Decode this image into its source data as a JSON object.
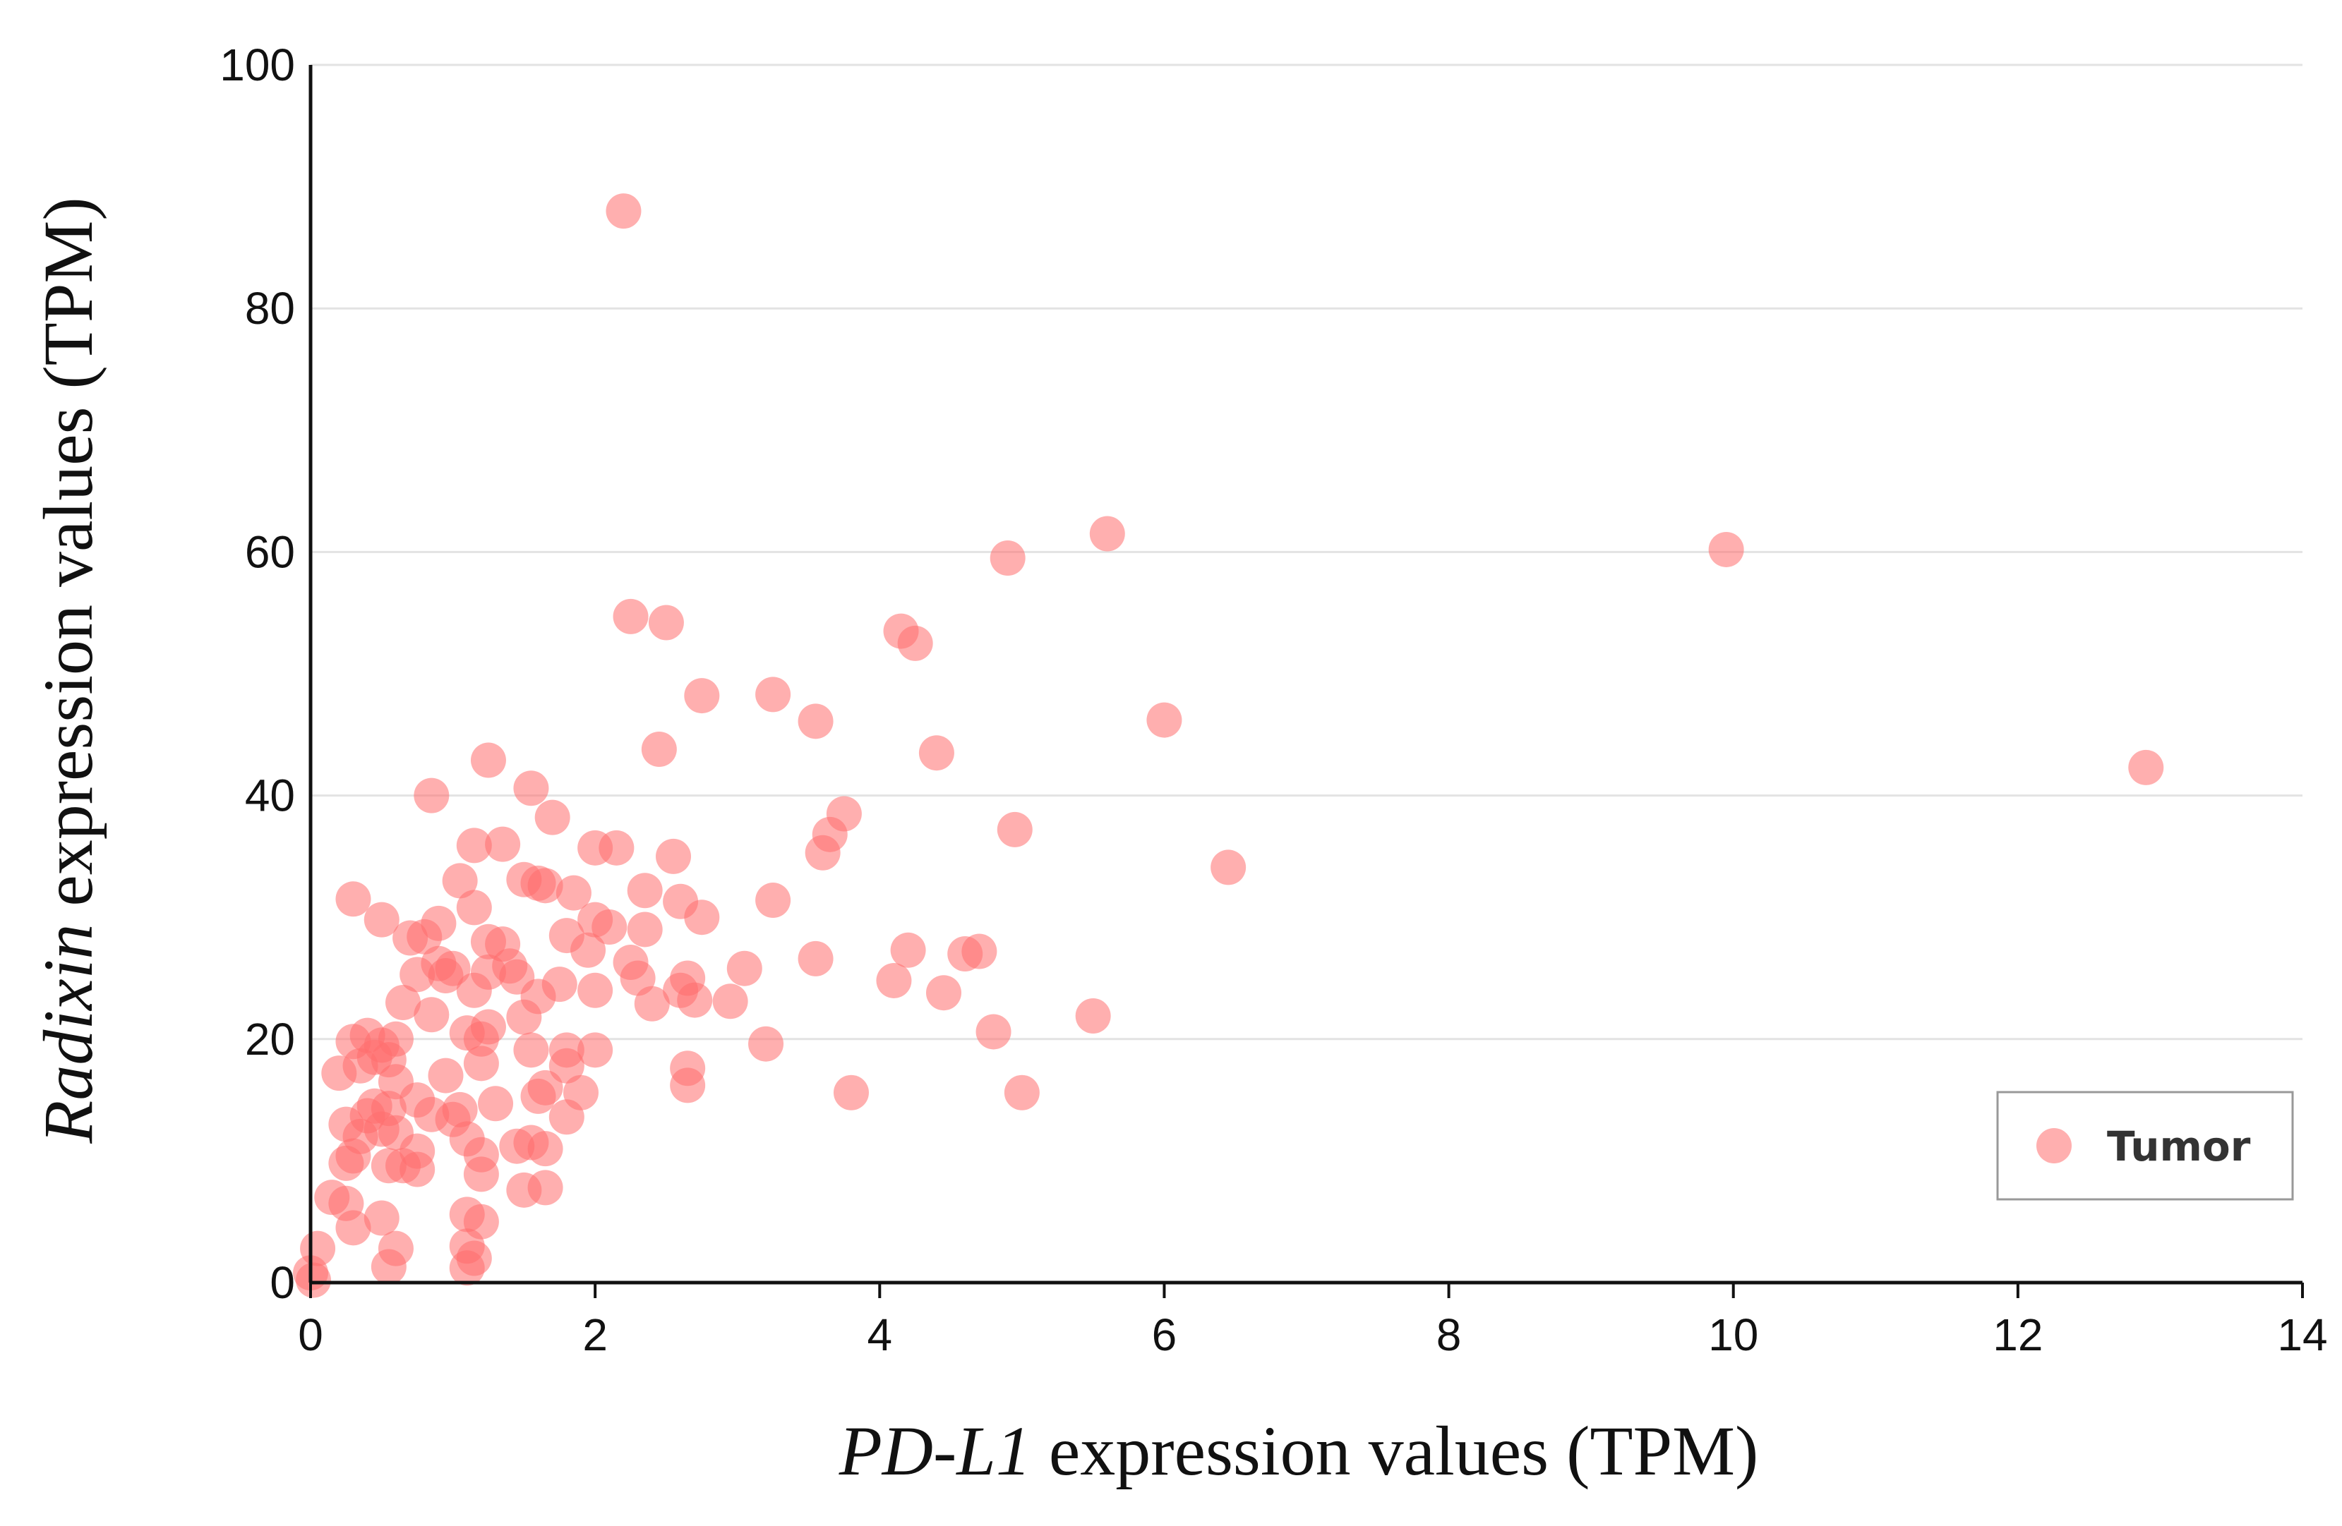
{
  "chart_data": {
    "type": "scatter",
    "title": "",
    "xlabel": {
      "italic": "PD-L1",
      "rest": " expression values (TPM)"
    },
    "ylabel": {
      "italic": "Radixin",
      "rest": " expression values (TPM)"
    },
    "xlim": [
      0,
      14
    ],
    "ylim": [
      0,
      100
    ],
    "xticks": [
      "0",
      "2",
      "4",
      "6",
      "8",
      "10",
      "12",
      "14"
    ],
    "yticks": [
      "0",
      "20",
      "40",
      "60",
      "80",
      "100"
    ],
    "grid": "horizontal",
    "legend": {
      "position": "bottom-right",
      "entries": [
        {
          "label": "Tumor",
          "color": "#ff6e6e"
        }
      ]
    },
    "series": [
      {
        "name": "Tumor",
        "color": "#ff6e6e",
        "points": [
          [
            2.2,
            88
          ],
          [
            5.6,
            61.5
          ],
          [
            9.95,
            60.2
          ],
          [
            4.9,
            59.5
          ],
          [
            2.25,
            54.7
          ],
          [
            2.5,
            54.2
          ],
          [
            4.15,
            53.5
          ],
          [
            4.25,
            52.5
          ],
          [
            2.75,
            48.2
          ],
          [
            3.25,
            48.3
          ],
          [
            3.55,
            46.1
          ],
          [
            6.0,
            46.2
          ],
          [
            2.45,
            43.8
          ],
          [
            4.4,
            43.5
          ],
          [
            12.9,
            42.3
          ],
          [
            1.25,
            42.9
          ],
          [
            1.55,
            40.6
          ],
          [
            0.85,
            40.0
          ],
          [
            3.75,
            38.5
          ],
          [
            1.7,
            38.2
          ],
          [
            4.95,
            37.2
          ],
          [
            3.65,
            36.8
          ],
          [
            1.35,
            36.0
          ],
          [
            1.15,
            35.9
          ],
          [
            2.0,
            35.7
          ],
          [
            2.15,
            35.7
          ],
          [
            3.6,
            35.3
          ],
          [
            2.55,
            35.0
          ],
          [
            6.45,
            34.1
          ],
          [
            1.05,
            33.0
          ],
          [
            1.6,
            32.8
          ],
          [
            1.5,
            33.1
          ],
          [
            1.65,
            32.6
          ],
          [
            2.35,
            32.2
          ],
          [
            1.85,
            32.0
          ],
          [
            0.3,
            31.5
          ],
          [
            2.6,
            31.3
          ],
          [
            3.25,
            31.4
          ],
          [
            1.15,
            30.8
          ],
          [
            0.5,
            29.8
          ],
          [
            0.9,
            29.5
          ],
          [
            2.0,
            29.8
          ],
          [
            2.1,
            29.2
          ],
          [
            2.75,
            30.0
          ],
          [
            2.35,
            29.0
          ],
          [
            0.7,
            28.3
          ],
          [
            1.25,
            28.0
          ],
          [
            1.8,
            28.5
          ],
          [
            1.35,
            27.8
          ],
          [
            0.8,
            28.4
          ],
          [
            1.95,
            27.3
          ],
          [
            4.2,
            27.3
          ],
          [
            4.6,
            27.0
          ],
          [
            4.7,
            27.2
          ],
          [
            3.55,
            26.6
          ],
          [
            2.25,
            26.3
          ],
          [
            1.4,
            26.0
          ],
          [
            0.9,
            26.2
          ],
          [
            1.0,
            25.8
          ],
          [
            3.05,
            25.8
          ],
          [
            1.25,
            25.5
          ],
          [
            0.75,
            25.3
          ],
          [
            0.95,
            25.2
          ],
          [
            2.3,
            25.0
          ],
          [
            1.45,
            25.1
          ],
          [
            2.65,
            25.0
          ],
          [
            4.1,
            24.8
          ],
          [
            1.75,
            24.5
          ],
          [
            1.15,
            24.0
          ],
          [
            2.6,
            24.0
          ],
          [
            2.0,
            24.0
          ],
          [
            4.45,
            23.8
          ],
          [
            1.6,
            23.5
          ],
          [
            2.7,
            23.2
          ],
          [
            0.65,
            23.0
          ],
          [
            2.95,
            23.1
          ],
          [
            2.4,
            22.9
          ],
          [
            5.5,
            21.9
          ],
          [
            0.85,
            22.0
          ],
          [
            1.5,
            21.8
          ],
          [
            1.25,
            21.0
          ],
          [
            1.1,
            20.5
          ],
          [
            4.8,
            20.6
          ],
          [
            0.4,
            20.3
          ],
          [
            0.6,
            20.0
          ],
          [
            0.3,
            19.8
          ],
          [
            0.5,
            19.5
          ],
          [
            1.2,
            20.0
          ],
          [
            3.2,
            19.6
          ],
          [
            1.55,
            19.1
          ],
          [
            1.8,
            19.1
          ],
          [
            2.0,
            19.1
          ],
          [
            0.45,
            18.5
          ],
          [
            0.55,
            18.3
          ],
          [
            1.2,
            18.0
          ],
          [
            1.8,
            17.8
          ],
          [
            0.35,
            17.8
          ],
          [
            2.65,
            17.6
          ],
          [
            0.2,
            17.2
          ],
          [
            0.95,
            17.0
          ],
          [
            0.6,
            16.5
          ],
          [
            2.65,
            16.2
          ],
          [
            1.65,
            16.0
          ],
          [
            1.9,
            15.6
          ],
          [
            3.8,
            15.6
          ],
          [
            5.0,
            15.6
          ],
          [
            1.6,
            15.3
          ],
          [
            0.75,
            15.0
          ],
          [
            1.3,
            14.7
          ],
          [
            0.45,
            14.5
          ],
          [
            0.55,
            14.3
          ],
          [
            1.05,
            14.2
          ],
          [
            0.85,
            13.8
          ],
          [
            0.4,
            13.7
          ],
          [
            1.8,
            13.6
          ],
          [
            1.0,
            13.4
          ],
          [
            0.25,
            13.0
          ],
          [
            0.5,
            12.6
          ],
          [
            0.6,
            12.3
          ],
          [
            0.35,
            12.0
          ],
          [
            1.1,
            11.8
          ],
          [
            1.55,
            11.5
          ],
          [
            1.45,
            11.2
          ],
          [
            1.65,
            11.0
          ],
          [
            0.75,
            10.8
          ],
          [
            0.3,
            10.4
          ],
          [
            1.2,
            10.5
          ],
          [
            0.25,
            9.8
          ],
          [
            0.65,
            9.6
          ],
          [
            0.75,
            9.3
          ],
          [
            0.55,
            9.6
          ],
          [
            1.2,
            8.9
          ],
          [
            1.65,
            7.8
          ],
          [
            1.5,
            7.6
          ],
          [
            0.15,
            7.0
          ],
          [
            0.25,
            6.5
          ],
          [
            1.1,
            5.6
          ],
          [
            0.5,
            5.3
          ],
          [
            1.2,
            5.0
          ],
          [
            0.3,
            4.5
          ],
          [
            1.1,
            3.0
          ],
          [
            0.6,
            2.8
          ],
          [
            0.05,
            2.8
          ],
          [
            1.15,
            2.0
          ],
          [
            0.55,
            1.3
          ],
          [
            1.1,
            1.2
          ],
          [
            0.0,
            0.8
          ],
          [
            0.02,
            0.2
          ]
        ]
      }
    ]
  }
}
